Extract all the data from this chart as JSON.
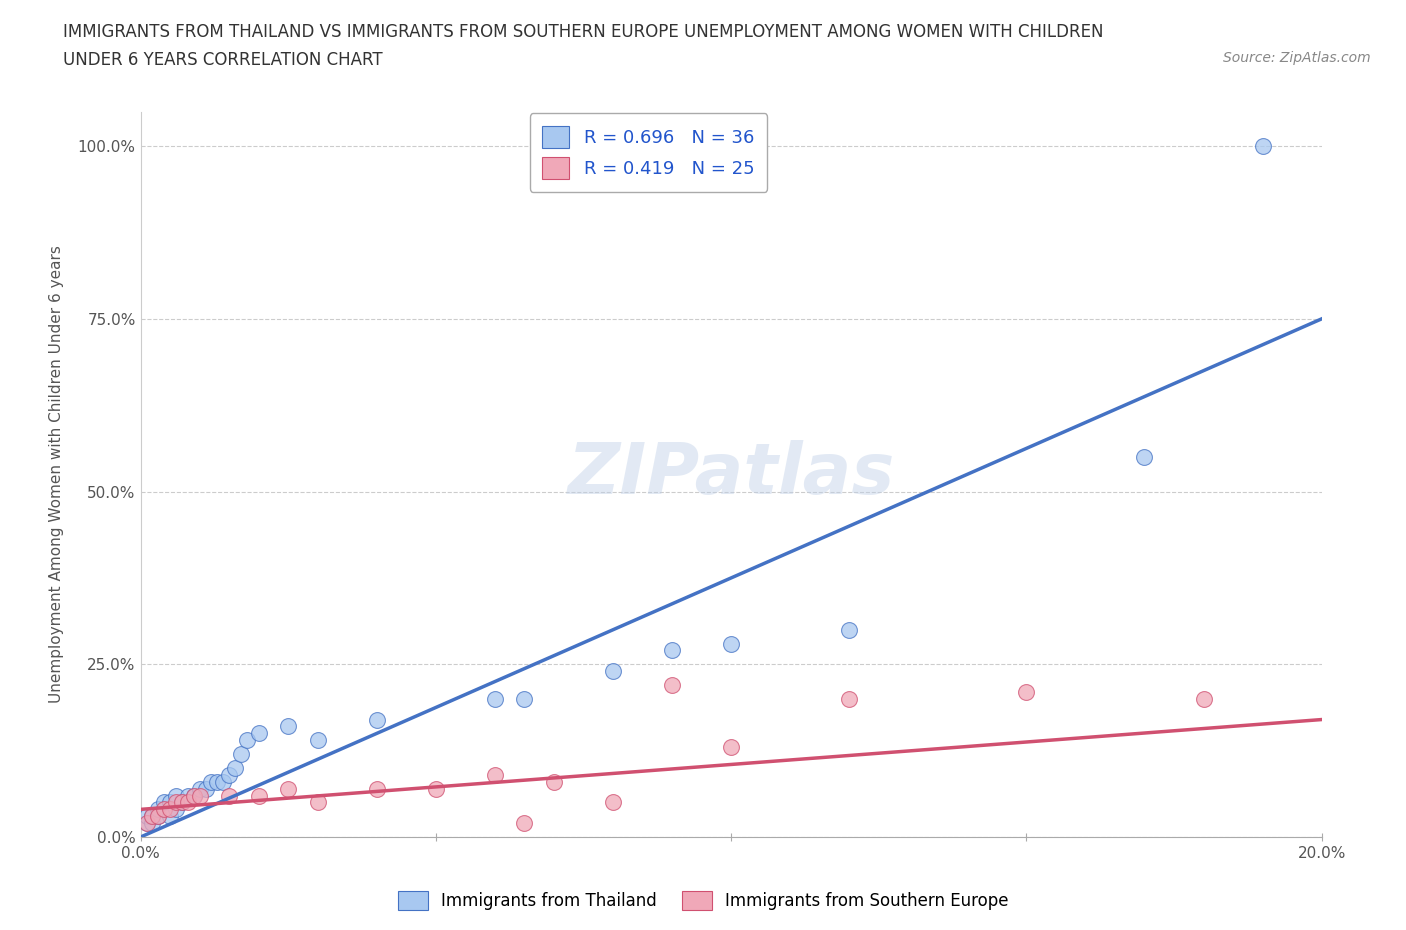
{
  "title_line1": "IMMIGRANTS FROM THAILAND VS IMMIGRANTS FROM SOUTHERN EUROPE UNEMPLOYMENT AMONG WOMEN WITH CHILDREN",
  "title_line2": "UNDER 6 YEARS CORRELATION CHART",
  "source": "Source: ZipAtlas.com",
  "ylabel": "Unemployment Among Women with Children Under 6 years",
  "xlim": [
    0.0,
    0.2
  ],
  "ylim": [
    0.0,
    1.05
  ],
  "yticks": [
    0.0,
    0.25,
    0.5,
    0.75,
    1.0
  ],
  "ytick_labels": [
    "0.0%",
    "25.0%",
    "50.0%",
    "75.0%",
    "100.0%"
  ],
  "xticks": [
    0.0,
    0.05,
    0.1,
    0.15,
    0.2
  ],
  "xtick_labels": [
    "0.0%",
    "",
    "",
    "",
    "20.0%"
  ],
  "R_thailand": 0.696,
  "N_thailand": 36,
  "R_southern": 0.419,
  "N_southern": 25,
  "color_thailand": "#a8c8f0",
  "color_southern": "#f0a8b8",
  "line_color_thailand": "#4472c4",
  "line_color_southern": "#d05070",
  "background_color": "#ffffff",
  "grid_color": "#cccccc",
  "thailand_x": [
    0.001,
    0.001,
    0.002,
    0.002,
    0.003,
    0.003,
    0.004,
    0.004,
    0.005,
    0.005,
    0.006,
    0.006,
    0.007,
    0.008,
    0.009,
    0.01,
    0.011,
    0.012,
    0.013,
    0.014,
    0.015,
    0.016,
    0.017,
    0.018,
    0.02,
    0.025,
    0.03,
    0.04,
    0.06,
    0.065,
    0.08,
    0.09,
    0.1,
    0.12,
    0.17,
    0.19
  ],
  "thailand_y": [
    0.02,
    0.03,
    0.02,
    0.03,
    0.03,
    0.04,
    0.04,
    0.05,
    0.03,
    0.05,
    0.04,
    0.06,
    0.05,
    0.06,
    0.06,
    0.07,
    0.07,
    0.08,
    0.08,
    0.08,
    0.09,
    0.1,
    0.12,
    0.14,
    0.15,
    0.16,
    0.14,
    0.17,
    0.2,
    0.2,
    0.24,
    0.27,
    0.28,
    0.3,
    0.55,
    1.0
  ],
  "southern_x": [
    0.001,
    0.002,
    0.003,
    0.004,
    0.005,
    0.006,
    0.007,
    0.008,
    0.009,
    0.01,
    0.015,
    0.02,
    0.025,
    0.03,
    0.04,
    0.05,
    0.06,
    0.065,
    0.07,
    0.08,
    0.09,
    0.1,
    0.12,
    0.15,
    0.18
  ],
  "southern_y": [
    0.02,
    0.03,
    0.03,
    0.04,
    0.04,
    0.05,
    0.05,
    0.05,
    0.06,
    0.06,
    0.06,
    0.06,
    0.07,
    0.05,
    0.07,
    0.07,
    0.09,
    0.02,
    0.08,
    0.05,
    0.22,
    0.13,
    0.2,
    0.21,
    0.2
  ],
  "line_thailand_x0": 0.0,
  "line_thailand_y0": 0.0,
  "line_thailand_x1": 0.2,
  "line_thailand_y1": 0.75,
  "line_southern_x0": 0.0,
  "line_southern_y0": 0.04,
  "line_southern_x1": 0.2,
  "line_southern_y1": 0.17
}
